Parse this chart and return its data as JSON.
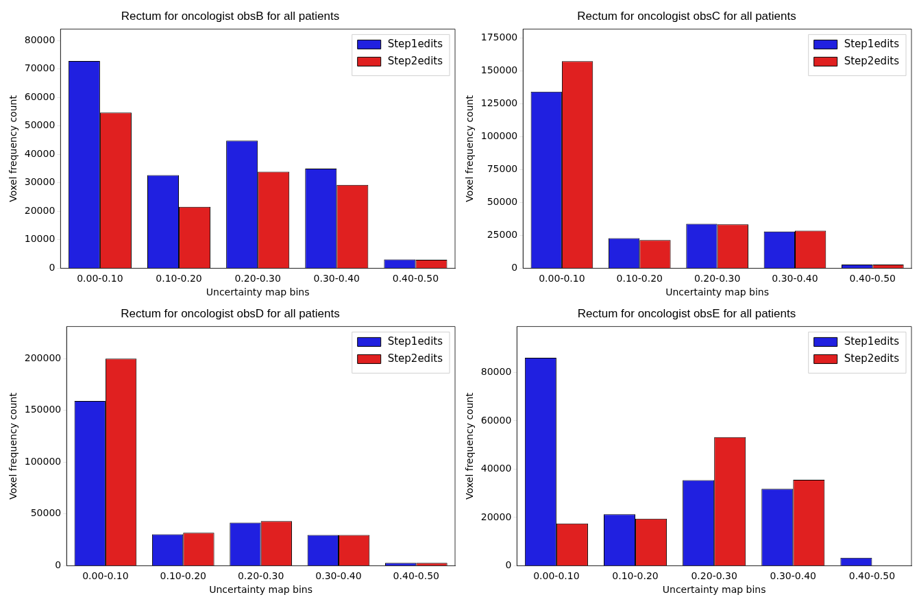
{
  "chart_data": [
    {
      "type": "bar",
      "title": "Rectum for oncologist obsB for all patients",
      "xlabel": "Uncertainty map bins",
      "ylabel": "Voxel frequency count",
      "categories": [
        "0.00-0.10",
        "0.10-0.20",
        "0.20-0.30",
        "0.30-0.40",
        "0.40-0.50"
      ],
      "series": [
        {
          "name": "Step1edits",
          "color": "#2020e0",
          "values": [
            72800,
            32700,
            44800,
            35000,
            3100
          ]
        },
        {
          "name": "Step2edits",
          "color": "#e02020",
          "values": [
            54700,
            21600,
            33900,
            29300,
            3000
          ]
        }
      ],
      "ylim": [
        0,
        84000
      ],
      "yticks": [
        0,
        10000,
        20000,
        30000,
        40000,
        50000,
        60000,
        70000,
        80000
      ],
      "grid": false,
      "legend": "top right"
    },
    {
      "type": "bar",
      "title": "Rectum for oncologist obsC for all patients",
      "xlabel": "Uncertainty map bins",
      "ylabel": "Voxel frequency count",
      "categories": [
        "0.00-0.10",
        "0.10-0.20",
        "0.20-0.30",
        "0.30-0.40",
        "0.40-0.50"
      ],
      "series": [
        {
          "name": "Step1edits",
          "color": "#2020e0",
          "values": [
            134400,
            22900,
            33900,
            28000,
            2800
          ]
        },
        {
          "name": "Step2edits",
          "color": "#e02020",
          "values": [
            157600,
            21400,
            33400,
            28600,
            2800
          ]
        }
      ],
      "ylim": [
        0,
        182000
      ],
      "yticks": [
        0,
        25000,
        50000,
        75000,
        100000,
        125000,
        150000,
        175000
      ],
      "grid": false,
      "legend": "top right"
    },
    {
      "type": "bar",
      "title": "Rectum for oncologist obsD for all patients",
      "xlabel": "Uncertainty map bins",
      "ylabel": "Voxel frequency count",
      "categories": [
        "0.00-0.10",
        "0.10-0.20",
        "0.20-0.30",
        "0.30-0.40",
        "0.40-0.50"
      ],
      "series": [
        {
          "name": "Step1edits",
          "color": "#2020e0",
          "values": [
            159100,
            30400,
            41700,
            29800,
            2800
          ]
        },
        {
          "name": "Step2edits",
          "color": "#e02020",
          "values": [
            200000,
            31800,
            43100,
            29800,
            2800
          ]
        }
      ],
      "ylim": [
        0,
        231000
      ],
      "yticks": [
        0,
        50000,
        100000,
        150000,
        200000
      ],
      "grid": false,
      "legend": "top right"
    },
    {
      "type": "bar",
      "title": "Rectum for oncologist obsE for all patients",
      "xlabel": "Uncertainty map bins",
      "ylabel": "Voxel frequency count",
      "categories": [
        "0.00-0.10",
        "0.10-0.20",
        "0.20-0.30",
        "0.30-0.40",
        "0.40-0.50"
      ],
      "series": [
        {
          "name": "Step1edits",
          "color": "#2020e0",
          "values": [
            86100,
            21300,
            35400,
            31800,
            3300
          ]
        },
        {
          "name": "Step2edits",
          "color": "#e02020",
          "values": [
            17500,
            19500,
            53200,
            35600,
            100
          ]
        }
      ],
      "ylim": [
        0,
        99000
      ],
      "yticks": [
        0,
        20000,
        40000,
        60000,
        80000
      ],
      "grid": false,
      "legend": "top right"
    }
  ]
}
